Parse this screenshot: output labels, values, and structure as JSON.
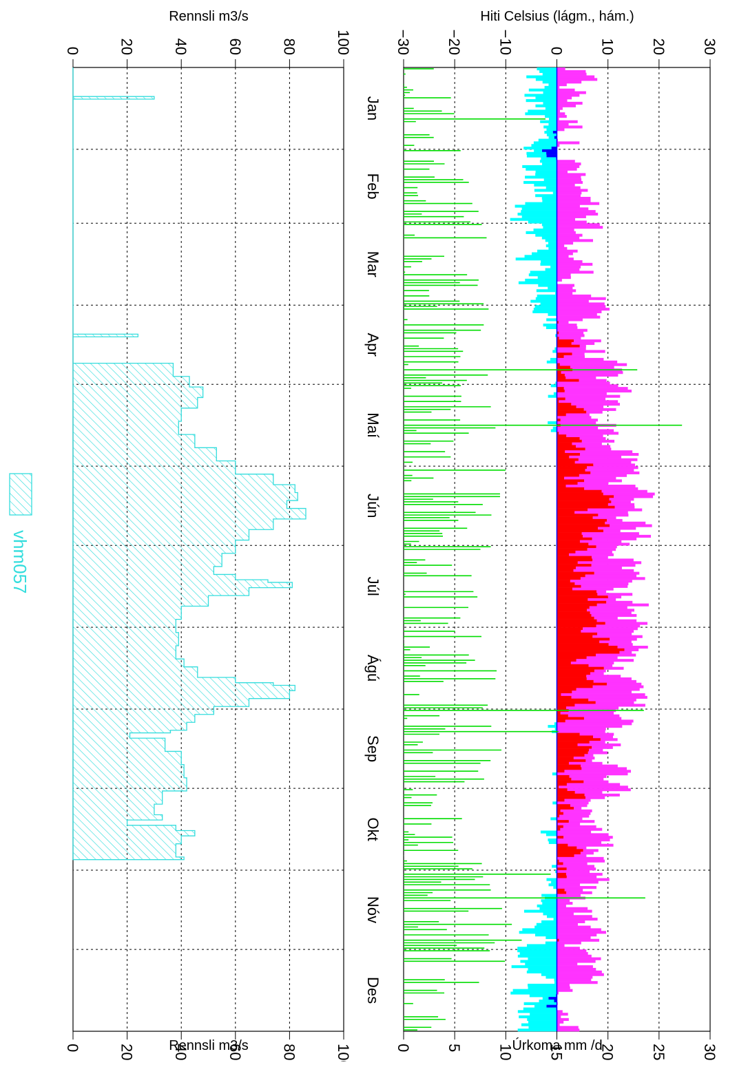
{
  "page": {
    "rotation": "90 degrees clockwise (figure is sideways)"
  },
  "colors": {
    "temp_range": "#ff33ff",
    "temp_positive": "#ff0000",
    "temp_negative_range": "#00ffff",
    "temp_negative": "#0000ff",
    "precip": "#00dd00",
    "flow": "#33dddd"
  },
  "months": [
    "Jan",
    "Feb",
    "Mar",
    "Apr",
    "Maí",
    "Jún",
    "Júl",
    "Ágú",
    "Sep",
    "Okt",
    "Nóv",
    "Des"
  ],
  "chart_data": [
    {
      "type": "bar",
      "name": "temperature-precipitation",
      "ylabel": "Hiti Celsius (lágm., hám.)",
      "y2label": "Úrkoma mm /d",
      "ylim": [
        -30,
        30
      ],
      "y2lim": [
        0,
        30
      ],
      "ticks_left": [
        "30",
        "20",
        "10",
        "0",
        "−10",
        "−20",
        "−30"
      ],
      "ticks_right": [
        "30",
        "25",
        "20",
        "15",
        "10",
        "5",
        "0"
      ],
      "grid": true,
      "x": "day of year 1-365",
      "monthly_approx": {
        "min_temp": [
          -5,
          -4,
          -4,
          0,
          2,
          6,
          8,
          7,
          4,
          0,
          -3,
          -5
        ],
        "max_temp": [
          3,
          3,
          4,
          7,
          10,
          16,
          15,
          14,
          12,
          7,
          5,
          3
        ],
        "precip": [
          5,
          6,
          9,
          7,
          10,
          9,
          8,
          9,
          9,
          5,
          12,
          11
        ]
      }
    },
    {
      "type": "area",
      "name": "discharge",
      "ylabel": "Rennsli m3/s",
      "ylim": [
        0,
        100
      ],
      "ticks": [
        "0",
        "20",
        "40",
        "60",
        "80",
        "100"
      ],
      "grid": true,
      "legend": {
        "label": "vhm057",
        "placement": "bottom"
      },
      "series_points": [
        [
          1,
          0
        ],
        [
          11,
          0
        ],
        [
          12,
          30
        ],
        [
          13,
          0
        ],
        [
          101,
          0
        ],
        [
          102,
          24
        ],
        [
          103,
          0
        ],
        [
          112,
          0
        ],
        [
          113,
          37
        ],
        [
          118,
          43
        ],
        [
          122,
          48
        ],
        [
          126,
          46
        ],
        [
          130,
          40
        ],
        [
          135,
          39
        ],
        [
          140,
          45
        ],
        [
          145,
          53
        ],
        [
          150,
          60
        ],
        [
          155,
          74
        ],
        [
          159,
          82
        ],
        [
          162,
          83
        ],
        [
          165,
          79
        ],
        [
          168,
          86
        ],
        [
          172,
          74
        ],
        [
          176,
          65
        ],
        [
          180,
          60
        ],
        [
          185,
          55
        ],
        [
          190,
          52
        ],
        [
          193,
          60
        ],
        [
          195,
          72
        ],
        [
          196,
          81
        ],
        [
          198,
          65
        ],
        [
          201,
          50
        ],
        [
          205,
          40
        ],
        [
          210,
          38
        ],
        [
          215,
          39
        ],
        [
          220,
          38
        ],
        [
          225,
          41
        ],
        [
          228,
          46
        ],
        [
          232,
          60
        ],
        [
          234,
          74
        ],
        [
          235,
          82
        ],
        [
          237,
          80
        ],
        [
          240,
          65
        ],
        [
          243,
          52
        ],
        [
          246,
          45
        ],
        [
          249,
          42
        ],
        [
          252,
          36
        ],
        [
          253,
          21
        ],
        [
          255,
          34
        ],
        [
          260,
          40
        ],
        [
          265,
          41
        ],
        [
          270,
          42
        ],
        [
          275,
          33
        ],
        [
          280,
          30
        ],
        [
          284,
          33
        ],
        [
          286,
          20
        ],
        [
          288,
          38
        ],
        [
          290,
          45
        ],
        [
          292,
          40
        ],
        [
          295,
          38
        ],
        [
          300,
          41
        ],
        [
          301,
          0
        ]
      ]
    }
  ]
}
